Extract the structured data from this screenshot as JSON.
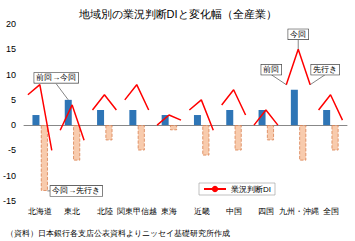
{
  "chart_data": {
    "type": "bar",
    "title": "地域別の業況判断DIと変化幅（全産業）",
    "categories": [
      "北海道",
      "東北",
      "北陸",
      "関東甲信越",
      "東海",
      "近畿",
      "中国",
      "四国",
      "九州・沖縄",
      "全国"
    ],
    "series": [
      {
        "color": "#2e75b6",
        "values": [
          2,
          5,
          3,
          3,
          2,
          2,
          3,
          3,
          7,
          3
        ]
      },
      {
        "color": "#f8cbad",
        "line_style": "dashed",
        "values": [
          -13,
          -7,
          -3,
          -5,
          -1,
          -6,
          -5,
          -3,
          -7,
          -5
        ]
      },
      {
        "name": "業況判断DI",
        "type": "line",
        "color": "#ff0000",
        "points": [
          "前回",
          "今回",
          "先行き"
        ],
        "values": [
          [
            6,
            8,
            -5
          ],
          [
            -1,
            4,
            -3
          ],
          [
            3,
            6,
            3
          ],
          [
            5,
            8,
            3
          ],
          [
            0,
            2,
            1
          ],
          [
            3,
            5,
            -1
          ],
          [
            4,
            7,
            2
          ],
          [
            0,
            3,
            0
          ],
          [
            8,
            15,
            8
          ],
          [
            3,
            6,
            1
          ]
        ]
      }
    ],
    "ylim": [
      -15,
      20
    ],
    "yticks": [
      -15,
      -10,
      -5,
      0,
      5,
      10,
      15,
      20
    ],
    "grid": false,
    "legend": "lower right",
    "annotations": [
      {
        "text": "前回→今回",
        "category": "東北",
        "series": 0
      },
      {
        "text": "今回→先行き",
        "category": "北海道",
        "series": 1
      },
      {
        "text": "前回",
        "category": "九州・沖縄",
        "series": 2
      },
      {
        "text": "今回",
        "category": "九州・沖縄",
        "series": 2
      },
      {
        "text": "先行き",
        "category": "九州・沖縄",
        "series": 2
      }
    ],
    "source": "（資料）日本銀行各支店公表資料よりニッセイ基礎研究所作成"
  }
}
